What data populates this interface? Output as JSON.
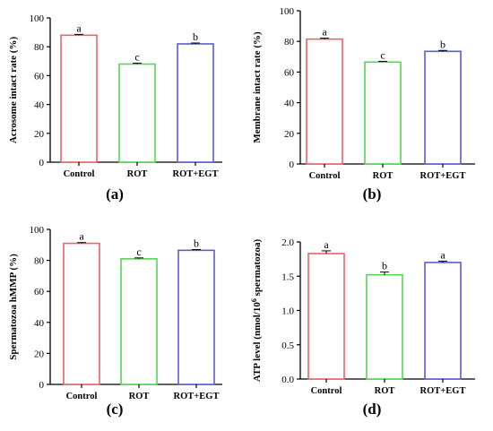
{
  "chart_data": [
    {
      "type": "bar",
      "panel_label": "(a)",
      "categories": [
        "Control",
        "ROT",
        "ROT+EGT"
      ],
      "values": [
        88,
        68,
        82
      ],
      "errors": [
        0.6,
        0.6,
        0.6
      ],
      "significance": [
        "a",
        "c",
        "b"
      ],
      "bar_colors": [
        "#e8646a",
        "#55d655",
        "#5b5bd6"
      ],
      "ylabel": "Acrosome intact rate (%)",
      "ylim": [
        0,
        100
      ],
      "yticks": [
        0,
        20,
        40,
        60,
        80,
        100
      ]
    },
    {
      "type": "bar",
      "panel_label": "(b)",
      "categories": [
        "Control",
        "ROT",
        "ROT+EGT"
      ],
      "values": [
        81.5,
        66.5,
        73.5
      ],
      "errors": [
        0.6,
        0.5,
        0.6
      ],
      "significance": [
        "a",
        "c",
        "b"
      ],
      "bar_colors": [
        "#e8646a",
        "#55d655",
        "#5b5bd6"
      ],
      "ylabel": "Membrane intact rate (%)",
      "ylim": [
        0,
        100
      ],
      "yticks": [
        0,
        20,
        40,
        60,
        80,
        100
      ]
    },
    {
      "type": "bar",
      "panel_label": "(c)",
      "categories": [
        "Control",
        "ROT",
        "ROT+EGT"
      ],
      "values": [
        91,
        81,
        86.5
      ],
      "errors": [
        0.5,
        0.6,
        0.5
      ],
      "significance": [
        "a",
        "c",
        "b"
      ],
      "bar_colors": [
        "#e8646a",
        "#55d655",
        "#5b5bd6"
      ],
      "ylabel": "Spermatozoa hMMP (%)",
      "ylim": [
        0,
        100
      ],
      "yticks": [
        0,
        20,
        40,
        60,
        80,
        100
      ]
    },
    {
      "type": "bar",
      "panel_label": "(d)",
      "categories": [
        "Control",
        "ROT",
        "ROT+EGT"
      ],
      "values": [
        1.83,
        1.52,
        1.7
      ],
      "errors": [
        0.04,
        0.04,
        0.02
      ],
      "significance": [
        "a",
        "b",
        "a"
      ],
      "bar_colors": [
        "#e8646a",
        "#55d655",
        "#5b5bd6"
      ],
      "ylabel": "ATP level (nmol/10",
      "ylabel_sup": "6",
      "ylabel_tail": " spermatozoa)",
      "ylim": [
        0,
        2.0
      ],
      "yticks": [
        "0.0",
        "0.5",
        "1.0",
        "1.5",
        "2.0"
      ]
    }
  ]
}
